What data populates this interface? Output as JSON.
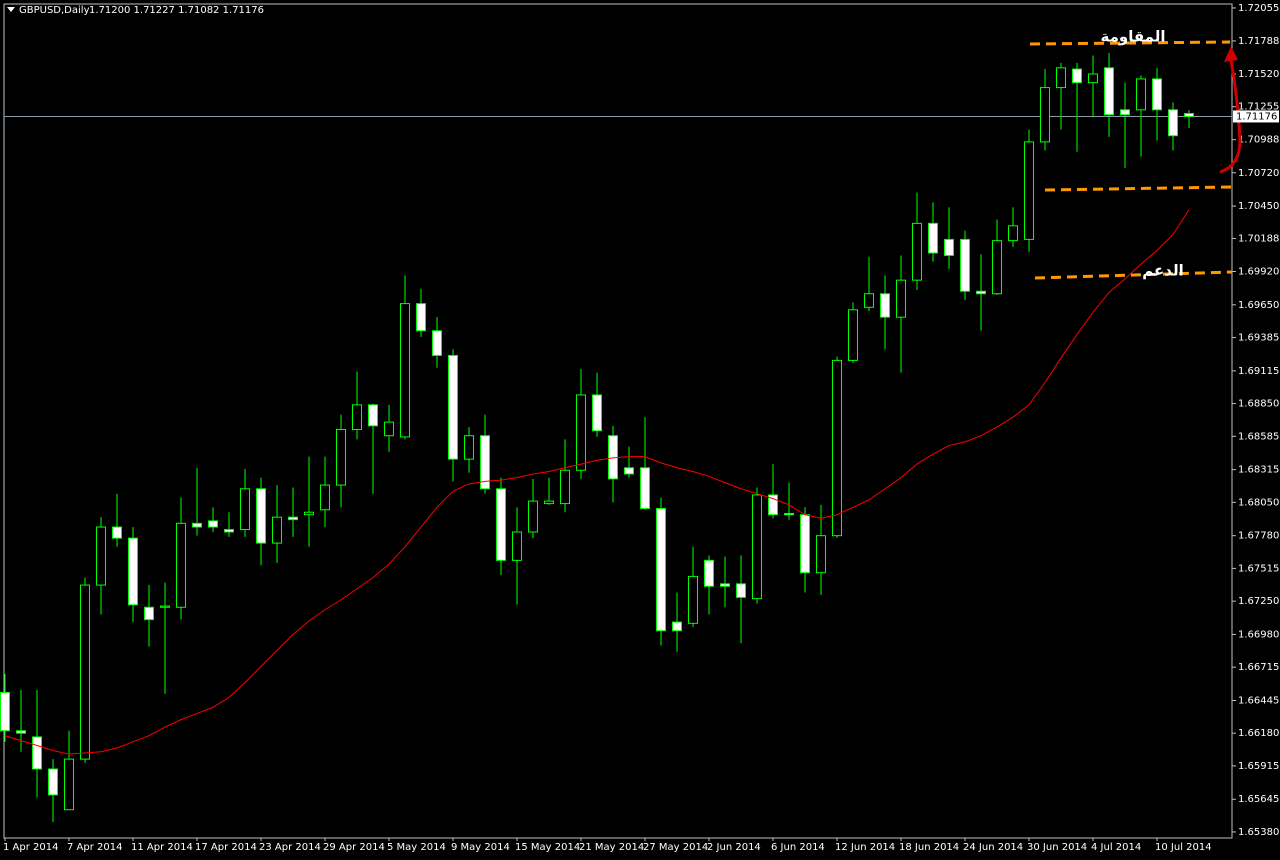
{
  "chart_data": {
    "type": "candlestick",
    "title": "GBPUSD,Daily",
    "ohlc_text": "1.71200 1.71227 1.71082 1.71176",
    "categories": [
      "1 Apr 2014",
      null,
      null,
      null,
      "7 Apr 2014",
      null,
      null,
      null,
      "11 Apr 2014",
      null,
      null,
      null,
      "17 Apr 2014",
      null,
      null,
      null,
      "23 Apr 2014",
      null,
      null,
      null,
      "29 Apr 2014",
      null,
      null,
      null,
      "5 May 2014",
      null,
      null,
      null,
      "9 May 2014",
      null,
      null,
      null,
      "15 May 2014",
      null,
      null,
      null,
      "21 May 2014",
      null,
      null,
      null,
      "27 May 2014",
      null,
      null,
      null,
      "2 Jun 2014",
      null,
      null,
      null,
      "6 Jun 2014",
      null,
      null,
      null,
      "12 Jun 2014",
      null,
      null,
      null,
      "18 Jun 2014",
      null,
      null,
      null,
      "24 Jun 2014",
      null,
      null,
      null,
      "30 Jun 2014",
      null,
      null,
      null,
      "4 Jul 2014",
      null,
      null,
      null,
      "10 Jul 2014",
      null,
      null
    ],
    "open": [
      1.6651,
      1.662,
      1.6615,
      1.6589,
      1.6556,
      1.6597,
      1.6738,
      1.6785,
      1.6776,
      1.672,
      1.672,
      1.672,
      1.6788,
      1.679,
      1.6783,
      1.6783,
      1.6816,
      1.6772,
      1.6793,
      1.6795,
      1.6799,
      1.6819,
      1.6864,
      1.6884,
      1.6859,
      1.6858,
      1.6966,
      1.6944,
      1.6924,
      1.684,
      1.6859,
      1.6816,
      1.6758,
      1.6781,
      1.6804,
      1.6804,
      1.6831,
      1.6892,
      1.6859,
      1.6833,
      1.6833,
      1.68,
      1.6708,
      1.6707,
      1.6758,
      1.6739,
      1.6739,
      1.6727,
      1.6811,
      1.6796,
      1.6795,
      1.6748,
      1.6778,
      1.692,
      1.6963,
      1.6974,
      1.6955,
      1.6985,
      1.7031,
      1.7018,
      1.7018,
      1.6976,
      1.6974,
      1.7017,
      1.7018,
      1.7097,
      1.7141,
      1.7156,
      1.7145,
      1.7157,
      1.7123,
      1.7123,
      1.7148,
      1.7123,
      1.712
    ],
    "high": [
      1.6666,
      1.6653,
      1.6653,
      1.6597,
      1.662,
      1.6744,
      1.6793,
      1.6812,
      1.6785,
      1.6738,
      1.674,
      1.6809,
      1.6833,
      1.6801,
      1.6797,
      1.6832,
      1.6825,
      1.6819,
      1.6817,
      1.6842,
      1.6842,
      1.6876,
      1.6911,
      1.6885,
      1.6884,
      1.6989,
      1.6978,
      1.6955,
      1.6929,
      1.6866,
      1.6876,
      1.6825,
      1.6801,
      1.6824,
      1.6825,
      1.6856,
      1.6913,
      1.691,
      1.6867,
      1.685,
      1.6874,
      1.6809,
      1.6732,
      1.6769,
      1.6762,
      1.6761,
      1.6762,
      1.6817,
      1.6836,
      1.6821,
      1.6801,
      1.6803,
      1.6923,
      1.6967,
      1.7004,
      1.6989,
      1.7005,
      1.7056,
      1.7048,
      1.7044,
      1.7025,
      1.7006,
      1.7034,
      1.7044,
      1.7107,
      1.7156,
      1.7161,
      1.7161,
      1.7167,
      1.7169,
      1.7145,
      1.7151,
      1.7157,
      1.7129,
      1.71227
    ],
    "low": [
      1.6611,
      1.6603,
      1.6566,
      1.6546,
      1.6556,
      1.6594,
      1.6714,
      1.6769,
      1.6708,
      1.6688,
      1.665,
      1.671,
      1.6778,
      1.6781,
      1.6777,
      1.6777,
      1.6754,
      1.6756,
      1.6777,
      1.6769,
      1.6785,
      1.6801,
      1.6856,
      1.6812,
      1.6846,
      1.6856,
      1.6939,
      1.6914,
      1.6822,
      1.6829,
      1.6812,
      1.6746,
      1.6722,
      1.6776,
      1.6803,
      1.6797,
      1.6824,
      1.6858,
      1.6805,
      1.6825,
      1.6799,
      1.6689,
      1.6684,
      1.6704,
      1.6714,
      1.672,
      1.6691,
      1.6723,
      1.6792,
      1.6791,
      1.6732,
      1.673,
      1.6776,
      1.6918,
      1.696,
      1.6929,
      1.691,
      1.6977,
      1.7,
      1.6994,
      1.6969,
      1.6944,
      1.6973,
      1.7012,
      1.7008,
      1.709,
      1.7107,
      1.7089,
      1.7117,
      1.7101,
      1.7076,
      1.7085,
      1.7098,
      1.709,
      1.71082
    ],
    "close": [
      1.662,
      1.6618,
      1.6589,
      1.6568,
      1.6597,
      1.6738,
      1.6785,
      1.6776,
      1.6722,
      1.671,
      1.6721,
      1.6788,
      1.6785,
      1.6785,
      1.6781,
      1.6816,
      1.6772,
      1.6793,
      1.6791,
      1.6797,
      1.6819,
      1.6864,
      1.6884,
      1.6867,
      1.687,
      1.6966,
      1.6944,
      1.6924,
      1.684,
      1.6859,
      1.6816,
      1.6758,
      1.6781,
      1.6806,
      1.6806,
      1.6831,
      1.6892,
      1.6863,
      1.6824,
      1.6828,
      1.68,
      1.6701,
      1.6701,
      1.6745,
      1.6737,
      1.6737,
      1.6728,
      1.6811,
      1.6795,
      1.6795,
      1.6748,
      1.6778,
      1.692,
      1.6961,
      1.6974,
      1.6955,
      1.6985,
      1.7031,
      1.7007,
      1.7005,
      1.6976,
      1.6974,
      1.7017,
      1.7029,
      1.7097,
      1.7141,
      1.7157,
      1.7145,
      1.7152,
      1.7119,
      1.7119,
      1.7148,
      1.7123,
      1.7102,
      1.71176
    ],
    "ma": {
      "color": "#ff0000",
      "values": [
        1.6616,
        1.6612,
        1.6608,
        1.6604,
        1.6601,
        1.6602,
        1.6603,
        1.6606,
        1.6611,
        1.6616,
        1.6623,
        1.6629,
        1.6634,
        1.6639,
        1.6647,
        1.6659,
        1.6672,
        1.6685,
        1.6698,
        1.6709,
        1.6718,
        1.6726,
        1.6735,
        1.6744,
        1.6755,
        1.6769,
        1.6785,
        1.6801,
        1.6814,
        1.682,
        1.6822,
        1.6823,
        1.6825,
        1.6828,
        1.683,
        1.6833,
        1.6836,
        1.6839,
        1.6841,
        1.6842,
        1.6842,
        1.6837,
        1.6833,
        1.683,
        1.6826,
        1.6821,
        1.6816,
        1.6812,
        1.6808,
        1.6803,
        1.6795,
        1.6792,
        1.6795,
        1.6801,
        1.6807,
        1.6816,
        1.6825,
        1.6836,
        1.6844,
        1.6851,
        1.6854,
        1.6859,
        1.6866,
        1.6874,
        1.6884,
        1.6902,
        1.6922,
        1.6941,
        1.6959,
        1.6975,
        1.6986,
        1.6998,
        1.7009,
        1.7022,
        1.7042
      ]
    },
    "wick_color": "#00ff00",
    "up_color": "#000000",
    "down_color": "#ffffff",
    "price_line": {
      "value": 1.71176,
      "label": "1.71176"
    },
    "annotations": [
      "المقاومة",
      "الدعم"
    ],
    "ylim": [
      1.65331,
      1.72087
    ],
    "yticks": [
      1.72055,
      1.71788,
      {
        "value": 1.7152,
        "label": "1.71520"
      },
      1.71255,
      1.70988,
      {
        "value": 1.7072,
        "label": "1.70720"
      },
      {
        "value": 1.7045,
        "label": "1.70450"
      },
      1.70188,
      {
        "value": 1.6992,
        "label": "1.69920"
      },
      {
        "value": 1.6965,
        "label": "1.69650"
      },
      1.69385,
      1.69115,
      {
        "value": 1.6885,
        "label": "1.68850"
      },
      1.68585,
      1.68315,
      {
        "value": 1.6805,
        "label": "1.68050"
      },
      {
        "value": 1.6778,
        "label": "1.67780"
      },
      1.67515,
      {
        "value": 1.6725,
        "label": "1.67250"
      },
      {
        "value": 1.6698,
        "label": "1.66980"
      },
      1.66715,
      1.66445,
      {
        "value": 1.6618,
        "label": "1.66180"
      },
      1.65915,
      1.65645,
      {
        "value": 1.6538,
        "label": "1.65380"
      }
    ]
  }
}
